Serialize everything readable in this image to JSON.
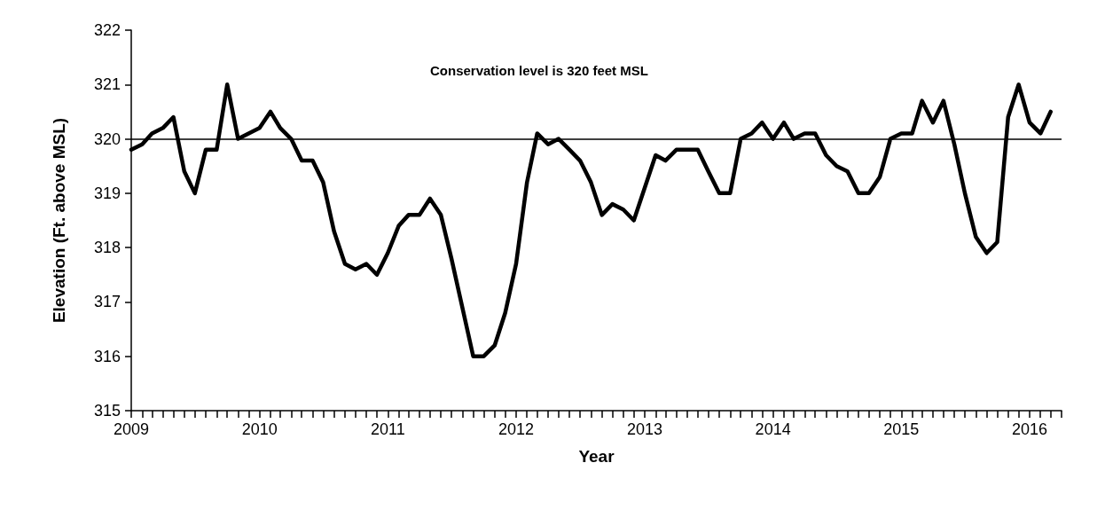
{
  "chart_data": {
    "type": "line",
    "xlabel": "Year",
    "ylabel": "Elevation (Ft. above MSL)",
    "annotations": [
      "Conservation level is 320 feet MSL"
    ],
    "x": [
      "2009-01",
      "2009-02",
      "2009-03",
      "2009-04",
      "2009-05",
      "2009-06",
      "2009-07",
      "2009-08",
      "2009-09",
      "2009-10",
      "2009-11",
      "2009-12",
      "2010-01",
      "2010-02",
      "2010-03",
      "2010-04",
      "2010-05",
      "2010-06",
      "2010-07",
      "2010-08",
      "2010-09",
      "2010-10",
      "2010-11",
      "2010-12",
      "2011-01",
      "2011-02",
      "2011-03",
      "2011-04",
      "2011-05",
      "2011-06",
      "2011-07",
      "2011-08",
      "2011-09",
      "2011-10",
      "2011-11",
      "2011-12",
      "2012-01",
      "2012-02",
      "2012-03",
      "2012-04",
      "2012-05",
      "2012-06",
      "2012-07",
      "2012-08",
      "2012-09",
      "2012-10",
      "2012-11",
      "2012-12",
      "2013-01",
      "2013-02",
      "2013-03",
      "2013-04",
      "2013-05",
      "2013-06",
      "2013-07",
      "2013-08",
      "2013-09",
      "2013-10",
      "2013-11",
      "2013-12",
      "2014-01",
      "2014-02",
      "2014-03",
      "2014-04",
      "2014-05",
      "2014-06",
      "2014-07",
      "2014-08",
      "2014-09",
      "2014-10",
      "2014-11",
      "2014-12",
      "2015-01",
      "2015-02",
      "2015-03",
      "2015-04",
      "2015-05",
      "2015-06",
      "2015-07",
      "2015-08",
      "2015-09",
      "2015-10",
      "2015-11",
      "2015-12",
      "2016-01",
      "2016-02",
      "2016-03"
    ],
    "series": [
      {
        "color": "#000000",
        "values": [
          319.8,
          319.9,
          320.1,
          320.2,
          320.4,
          319.4,
          319.0,
          319.8,
          319.8,
          321.0,
          320.0,
          320.1,
          320.2,
          320.5,
          320.2,
          320.0,
          319.6,
          319.6,
          319.2,
          318.3,
          317.7,
          317.6,
          317.7,
          317.5,
          317.9,
          318.4,
          318.6,
          318.6,
          318.9,
          318.6,
          317.8,
          316.9,
          316.0,
          316.0,
          316.2,
          316.8,
          317.7,
          319.2,
          320.1,
          319.9,
          320.0,
          319.8,
          319.6,
          319.2,
          318.6,
          318.8,
          318.7,
          318.5,
          319.1,
          319.7,
          319.6,
          319.8,
          319.8,
          319.8,
          319.4,
          319.0,
          319.0,
          320.0,
          320.1,
          320.3,
          320.0,
          320.3,
          320.0,
          320.1,
          320.1,
          319.7,
          319.5,
          319.4,
          319.0,
          319.0,
          319.3,
          320.0,
          320.1,
          320.1,
          320.7,
          320.3,
          320.7,
          319.9,
          319.0,
          318.2,
          317.9,
          318.1,
          320.4,
          321.0,
          320.3,
          320.1,
          320.5
        ]
      }
    ],
    "xlim": [
      "2009-01",
      "2016-04"
    ],
    "xticks": [
      "2009",
      {
        "value": "2009-02",
        "label": null
      },
      {
        "value": "2009-03",
        "label": null
      },
      {
        "value": "2009-04",
        "label": null
      },
      {
        "value": "2009-05",
        "label": null
      },
      {
        "value": "2009-06",
        "label": null
      },
      {
        "value": "2009-07",
        "label": null
      },
      {
        "value": "2009-08",
        "label": null
      },
      {
        "value": "2009-09",
        "label": null
      },
      {
        "value": "2009-10",
        "label": null
      },
      {
        "value": "2009-11",
        "label": null
      },
      {
        "value": "2009-12",
        "label": null
      },
      "2010",
      {
        "value": "2010-02",
        "label": null
      },
      {
        "value": "2010-03",
        "label": null
      },
      {
        "value": "2010-04",
        "label": null
      },
      {
        "value": "2010-05",
        "label": null
      },
      {
        "value": "2010-06",
        "label": null
      },
      {
        "value": "2010-07",
        "label": null
      },
      {
        "value": "2010-08",
        "label": null
      },
      {
        "value": "2010-09",
        "label": null
      },
      {
        "value": "2010-10",
        "label": null
      },
      {
        "value": "2010-11",
        "label": null
      },
      {
        "value": "2010-12",
        "label": null
      },
      "2011",
      {
        "value": "2011-02",
        "label": null
      },
      {
        "value": "2011-03",
        "label": null
      },
      {
        "value": "2011-04",
        "label": null
      },
      {
        "value": "2011-05",
        "label": null
      },
      {
        "value": "2011-06",
        "label": null
      },
      {
        "value": "2011-07",
        "label": null
      },
      {
        "value": "2011-08",
        "label": null
      },
      {
        "value": "2011-09",
        "label": null
      },
      {
        "value": "2011-10",
        "label": null
      },
      {
        "value": "2011-11",
        "label": null
      },
      {
        "value": "2011-12",
        "label": null
      },
      "2012",
      {
        "value": "2012-02",
        "label": null
      },
      {
        "value": "2012-03",
        "label": null
      },
      {
        "value": "2012-04",
        "label": null
      },
      {
        "value": "2012-05",
        "label": null
      },
      {
        "value": "2012-06",
        "label": null
      },
      {
        "value": "2012-07",
        "label": null
      },
      {
        "value": "2012-08",
        "label": null
      },
      {
        "value": "2012-09",
        "label": null
      },
      {
        "value": "2012-10",
        "label": null
      },
      {
        "value": "2012-11",
        "label": null
      },
      {
        "value": "2012-12",
        "label": null
      },
      "2013",
      {
        "value": "2013-02",
        "label": null
      },
      {
        "value": "2013-03",
        "label": null
      },
      {
        "value": "2013-04",
        "label": null
      },
      {
        "value": "2013-05",
        "label": null
      },
      {
        "value": "2013-06",
        "label": null
      },
      {
        "value": "2013-07",
        "label": null
      },
      {
        "value": "2013-08",
        "label": null
      },
      {
        "value": "2013-09",
        "label": null
      },
      {
        "value": "2013-10",
        "label": null
      },
      {
        "value": "2013-11",
        "label": null
      },
      {
        "value": "2013-12",
        "label": null
      },
      "2014",
      {
        "value": "2014-02",
        "label": null
      },
      {
        "value": "2014-03",
        "label": null
      },
      {
        "value": "2014-04",
        "label": null
      },
      {
        "value": "2014-05",
        "label": null
      },
      {
        "value": "2014-06",
        "label": null
      },
      {
        "value": "2014-07",
        "label": null
      },
      {
        "value": "2014-08",
        "label": null
      },
      {
        "value": "2014-09",
        "label": null
      },
      {
        "value": "2014-10",
        "label": null
      },
      {
        "value": "2014-11",
        "label": null
      },
      {
        "value": "2014-12",
        "label": null
      },
      "2015",
      {
        "value": "2015-02",
        "label": null
      },
      {
        "value": "2015-03",
        "label": null
      },
      {
        "value": "2015-04",
        "label": null
      },
      {
        "value": "2015-05",
        "label": null
      },
      {
        "value": "2015-06",
        "label": null
      },
      {
        "value": "2015-07",
        "label": null
      },
      {
        "value": "2015-08",
        "label": null
      },
      {
        "value": "2015-09",
        "label": null
      },
      {
        "value": "2015-10",
        "label": null
      },
      {
        "value": "2015-11",
        "label": null
      },
      {
        "value": "2015-12",
        "label": null
      },
      "2016",
      {
        "value": "2016-02",
        "label": null
      },
      {
        "value": "2016-03",
        "label": null
      },
      {
        "value": "2016-04",
        "label": null
      }
    ],
    "ylim": [
      315,
      322
    ],
    "yticks": [
      315,
      316,
      317,
      318,
      319,
      320,
      321,
      322
    ],
    "ref_lines": [
      {
        "axis": "y",
        "value": 320,
        "color": "#000000",
        "line_style": "solid"
      }
    ],
    "grid": false,
    "marker": "none",
    "line_style": "solid"
  }
}
